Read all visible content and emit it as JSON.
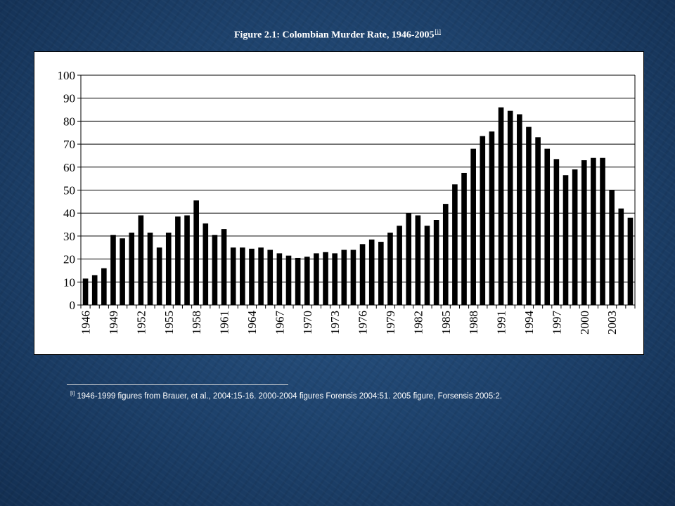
{
  "figure": {
    "title": "Figure 2.1:  Colombian Murder Rate, 1946-2005",
    "title_ref": "[i]"
  },
  "footnote": {
    "ref": "[i]",
    "text": "1946-1999  figures from Brauer, et al., 2004:15-16.   2000-2004  figures Forensis 2004:51.   2005 figure, Forsensis 2005:2."
  },
  "colors": {
    "background": "#1d416b",
    "plot_background": "#ffffff",
    "bars": "#000000",
    "grid": "#000000"
  },
  "chart_data": {
    "type": "bar",
    "title": "",
    "xlabel": "",
    "ylabel": "",
    "ylim": [
      0,
      100
    ],
    "yticks": [
      0,
      10,
      20,
      30,
      40,
      50,
      60,
      70,
      80,
      90,
      100
    ],
    "grid": true,
    "legend": "none",
    "x_tick_labels": [
      "1946",
      "1949",
      "1952",
      "1955",
      "1958",
      "1961",
      "1964",
      "1967",
      "1970",
      "1973",
      "1976",
      "1979",
      "1982",
      "1985",
      "1988",
      "1991",
      "1994",
      "1997",
      "2000",
      "2003"
    ],
    "categories": [
      1946,
      1947,
      1948,
      1949,
      1950,
      1951,
      1952,
      1953,
      1954,
      1955,
      1956,
      1957,
      1958,
      1959,
      1960,
      1961,
      1962,
      1963,
      1964,
      1965,
      1966,
      1967,
      1968,
      1969,
      1970,
      1971,
      1972,
      1973,
      1974,
      1975,
      1976,
      1977,
      1978,
      1979,
      1980,
      1981,
      1982,
      1983,
      1984,
      1985,
      1986,
      1987,
      1988,
      1989,
      1990,
      1991,
      1992,
      1993,
      1994,
      1995,
      1996,
      1997,
      1998,
      1999,
      2000,
      2001,
      2002,
      2003,
      2004,
      2005
    ],
    "values": [
      11.5,
      13,
      16,
      30.5,
      29,
      31.5,
      39,
      31.5,
      25,
      31.5,
      38.5,
      39,
      45.5,
      35.5,
      30.5,
      33,
      25,
      25,
      24.5,
      25,
      24,
      22.5,
      21.5,
      20.5,
      21,
      22.5,
      23,
      22.5,
      24,
      24,
      26.5,
      28.5,
      27.5,
      31.5,
      34.5,
      40,
      39,
      34.5,
      37,
      44,
      52.5,
      57.5,
      68,
      73.5,
      75.5,
      86,
      84.5,
      83,
      77.5,
      73,
      68,
      63.5,
      56.5,
      59,
      63,
      64,
      64,
      50,
      42,
      38
    ]
  }
}
